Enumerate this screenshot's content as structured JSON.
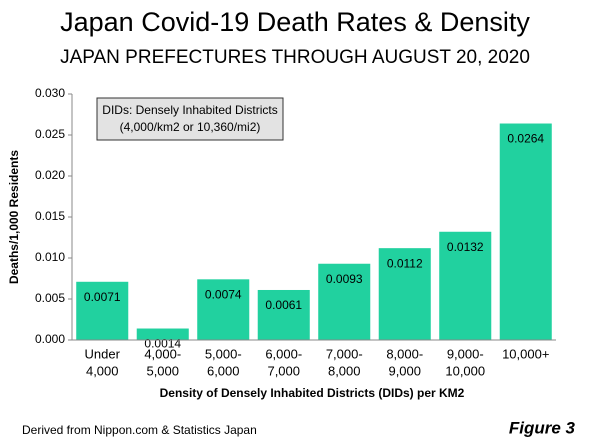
{
  "chart_data": {
    "type": "bar",
    "title": "Japan Covid-19 Death Rates & Density",
    "subtitle": "JAPAN PREFECTURES THROUGH AUGUST 20, 2020",
    "y_label": "Deaths/1,000 Residents",
    "x_label": "Density of Densely Inhabited Districts (DIDs)  per KM2",
    "annotation": [
      "DIDs: Densely Inhabited Districts",
      "(4,000/km2 or  10,360/mi2)"
    ],
    "source": "Derived from Nippon.com & Statistics Japan",
    "figure_label": "Figure 3",
    "categories": [
      [
        "Under",
        "4,000"
      ],
      [
        "4,000-",
        "5,000"
      ],
      [
        "5,000-",
        "6,000"
      ],
      [
        "6,000-",
        "7,000"
      ],
      [
        "7,000-",
        "8,000"
      ],
      [
        "8,000-",
        "9,000"
      ],
      [
        "9,000-",
        "10,000"
      ],
      [
        "10,000+"
      ]
    ],
    "values": [
      0.0071,
      0.0014,
      0.0074,
      0.0061,
      0.0093,
      0.0112,
      0.0132,
      0.0264
    ],
    "color": "#21d19f",
    "ylim": [
      0,
      0.03
    ],
    "yticks": [
      {
        "value": 0,
        "label": "0.000"
      },
      {
        "value": 0.005,
        "label": "0.005"
      },
      {
        "value": 0.01,
        "label": "0.010"
      },
      {
        "value": 0.015,
        "label": "0.015"
      },
      {
        "value": 0.02,
        "label": "0.020"
      },
      {
        "value": 0.025,
        "label": "0.025"
      },
      {
        "value": 0.03,
        "label": "0.030"
      }
    ],
    "grid": false
  }
}
